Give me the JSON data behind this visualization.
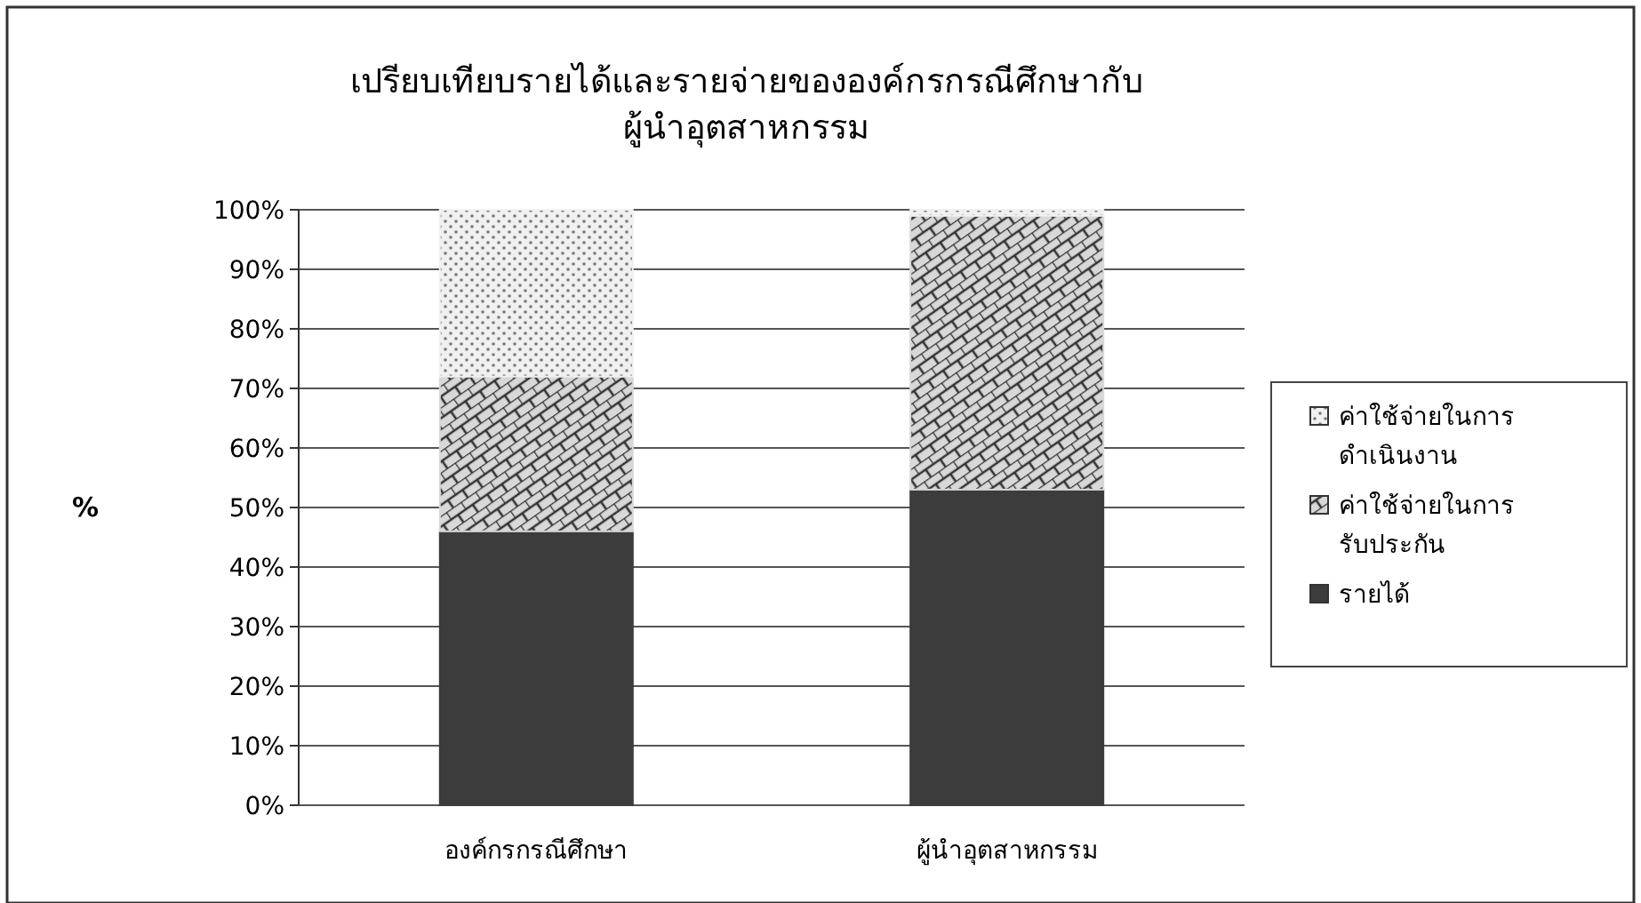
{
  "chart_data": {
    "type": "bar",
    "title": "เปรียบเทียบรายได้และรายจ่ายขององค์กรกรณีศึกษากับ\nผู้นำอุตสาหกรรม",
    "ylabel": "%",
    "categories": [
      "องค์กรกรณีศึกษา",
      "ผู้นำอุตสาหกรรม"
    ],
    "stacked": true,
    "series": [
      {
        "name": "รายได้",
        "color": "#3c3c3c",
        "values": [
          46,
          53
        ]
      },
      {
        "name": "ค่าใช้จ่ายในการ\nรับประกัน",
        "color": "#d8d8d8",
        "values": [
          26,
          46
        ]
      },
      {
        "name": "ค่าใช้จ่ายในการ\nดำเนินงาน",
        "color": "#f0f0f0",
        "values": [
          28,
          1
        ]
      }
    ],
    "ylim": [
      0,
      100
    ],
    "yticks": [
      {
        "value": 0,
        "label": "0%"
      },
      {
        "value": 10,
        "label": "10%"
      },
      {
        "value": 20,
        "label": "20%"
      },
      {
        "value": 30,
        "label": "30%"
      },
      {
        "value": 40,
        "label": "40%"
      },
      {
        "value": 50,
        "label": "50%"
      },
      {
        "value": 60,
        "label": "60%"
      },
      {
        "value": 70,
        "label": "70%"
      },
      {
        "value": 80,
        "label": "80%"
      },
      {
        "value": 90,
        "label": "90%"
      },
      {
        "value": 100,
        "label": "100%"
      }
    ],
    "grid": "y",
    "legend": "right"
  }
}
